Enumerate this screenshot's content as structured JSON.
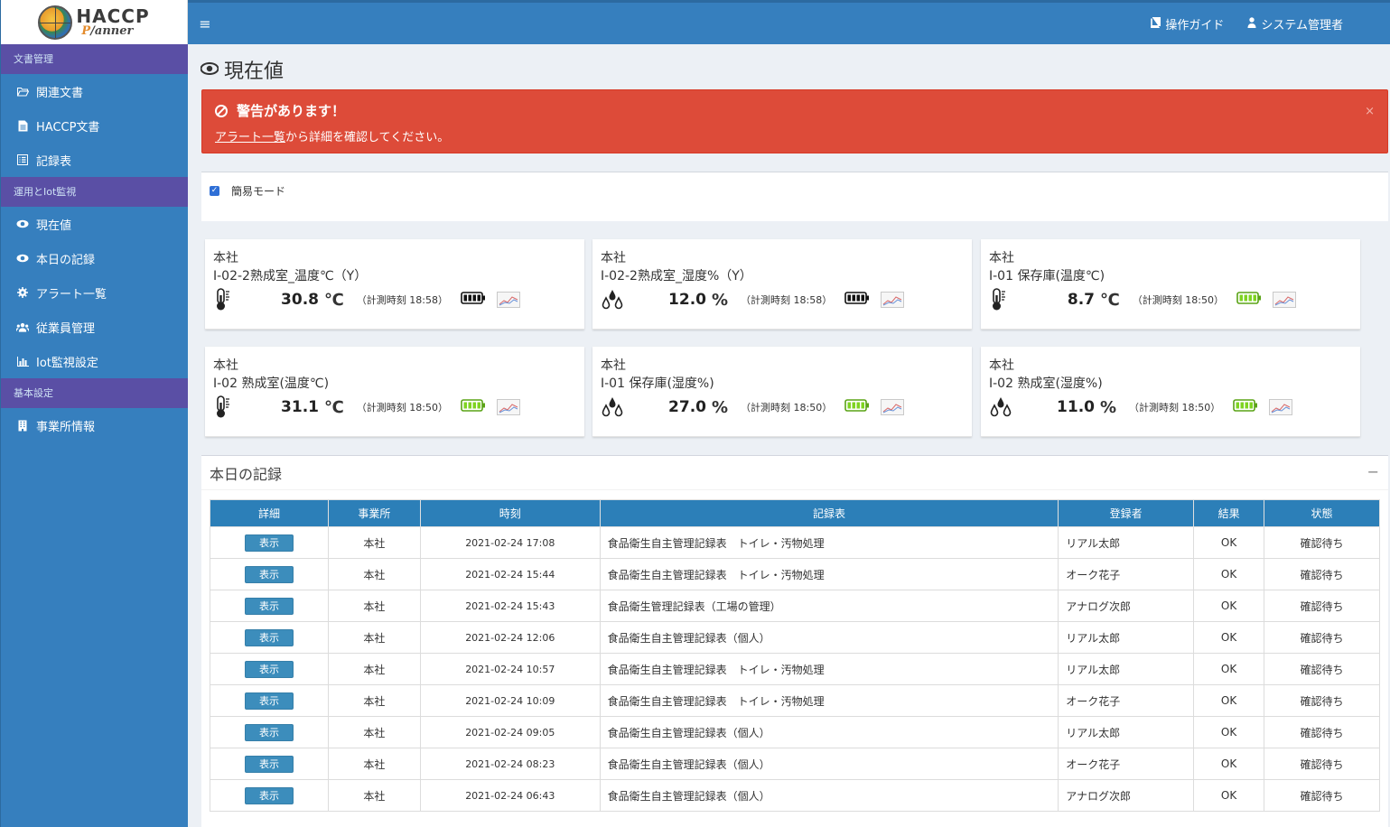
{
  "logo": {
    "line1": "HACCP",
    "line2_a": "P",
    "line2_b": "/anner"
  },
  "sidebar": {
    "sections": [
      {
        "header": "文書管理",
        "items": [
          {
            "label": "関連文書",
            "icon": "folder-open-icon"
          },
          {
            "label": "HACCP文書",
            "icon": "file-icon"
          },
          {
            "label": "記録表",
            "icon": "list-alt-icon"
          }
        ]
      },
      {
        "header": "運用とIot監視",
        "items": [
          {
            "label": "現在値",
            "icon": "eye-icon"
          },
          {
            "label": "本日の記録",
            "icon": "eye-icon"
          },
          {
            "label": "アラート一覧",
            "icon": "gear-icon"
          },
          {
            "label": "従業員管理",
            "icon": "users-icon"
          },
          {
            "label": "Iot監視設定",
            "icon": "bar-chart-icon"
          }
        ]
      },
      {
        "header": "基本設定",
        "items": [
          {
            "label": "事業所情報",
            "icon": "building-icon"
          }
        ]
      }
    ]
  },
  "topbar": {
    "guide": "操作ガイド",
    "user": "システム管理者"
  },
  "page": {
    "title": "現在値"
  },
  "alert": {
    "title": "警告があります！",
    "link": "アラート一覧",
    "text": "から詳細を確認してください。",
    "close": "×"
  },
  "mode": {
    "label": "簡易モード",
    "checked": true
  },
  "cards": [
    {
      "site": "本社",
      "sensor": "I-02-2熟成室_温度℃（Y）",
      "value": "30.8",
      "unit": "℃",
      "time": "（計測時刻 18:58）",
      "kind": "temp",
      "battery": "dark"
    },
    {
      "site": "本社",
      "sensor": "I-02-2熟成室_湿度%（Y）",
      "value": "12.0",
      "unit": "%",
      "time": "（計測時刻 18:58）",
      "kind": "hum",
      "battery": "dark"
    },
    {
      "site": "本社",
      "sensor": "I-01 保存庫(温度℃)",
      "value": "8.7",
      "unit": "℃",
      "time": "（計測時刻 18:50）",
      "kind": "temp",
      "battery": "green"
    },
    {
      "site": "本社",
      "sensor": "I-02 熟成室(温度℃)",
      "value": "31.1",
      "unit": "℃",
      "time": "（計測時刻 18:50）",
      "kind": "temp",
      "battery": "green"
    },
    {
      "site": "本社",
      "sensor": "I-01 保存庫(湿度%)",
      "value": "27.0",
      "unit": "%",
      "time": "（計測時刻 18:50）",
      "kind": "hum",
      "battery": "green"
    },
    {
      "site": "本社",
      "sensor": "I-02 熟成室(湿度%)",
      "value": "11.0",
      "unit": "%",
      "time": "（計測時刻 18:50）",
      "kind": "hum",
      "battery": "green"
    }
  ],
  "records": {
    "title": "本日の記録",
    "collapse": "−",
    "columns": [
      "詳細",
      "事業所",
      "時刻",
      "記録表",
      "登録者",
      "結果",
      "状態"
    ],
    "show_label": "表示",
    "rows": [
      {
        "site": "本社",
        "time": "2021-02-24 17:08",
        "form": "食品衛生自主管理記録表　トイレ・汚物処理",
        "user": "リアル太郎",
        "result": "OK",
        "status": "確認待ち"
      },
      {
        "site": "本社",
        "time": "2021-02-24 15:44",
        "form": "食品衛生自主管理記録表　トイレ・汚物処理",
        "user": "オーク花子",
        "result": "OK",
        "status": "確認待ち"
      },
      {
        "site": "本社",
        "time": "2021-02-24 15:43",
        "form": "食品衛生管理記録表（工場の管理）",
        "user": "アナログ次郎",
        "result": "OK",
        "status": "確認待ち"
      },
      {
        "site": "本社",
        "time": "2021-02-24 12:06",
        "form": "食品衛生自主管理記録表（個人）",
        "user": "リアル太郎",
        "result": "OK",
        "status": "確認待ち"
      },
      {
        "site": "本社",
        "time": "2021-02-24 10:57",
        "form": "食品衛生自主管理記録表　トイレ・汚物処理",
        "user": "リアル太郎",
        "result": "OK",
        "status": "確認待ち"
      },
      {
        "site": "本社",
        "time": "2021-02-24 10:09",
        "form": "食品衛生自主管理記録表　トイレ・汚物処理",
        "user": "オーク花子",
        "result": "OK",
        "status": "確認待ち"
      },
      {
        "site": "本社",
        "time": "2021-02-24 09:05",
        "form": "食品衛生自主管理記録表（個人）",
        "user": "リアル太郎",
        "result": "OK",
        "status": "確認待ち"
      },
      {
        "site": "本社",
        "time": "2021-02-24 08:23",
        "form": "食品衛生自主管理記録表（個人）",
        "user": "オーク花子",
        "result": "OK",
        "status": "確認待ち"
      },
      {
        "site": "本社",
        "time": "2021-02-24 06:43",
        "form": "食品衛生自主管理記録表（個人）",
        "user": "アナログ次郎",
        "result": "OK",
        "status": "確認待ち"
      }
    ]
  },
  "colors": {
    "primary": "#367fbe",
    "section_header": "#5a4fa5",
    "alert": "#dd4b39",
    "table_header": "#2c7fb8",
    "battery_green": "#7ed321"
  }
}
